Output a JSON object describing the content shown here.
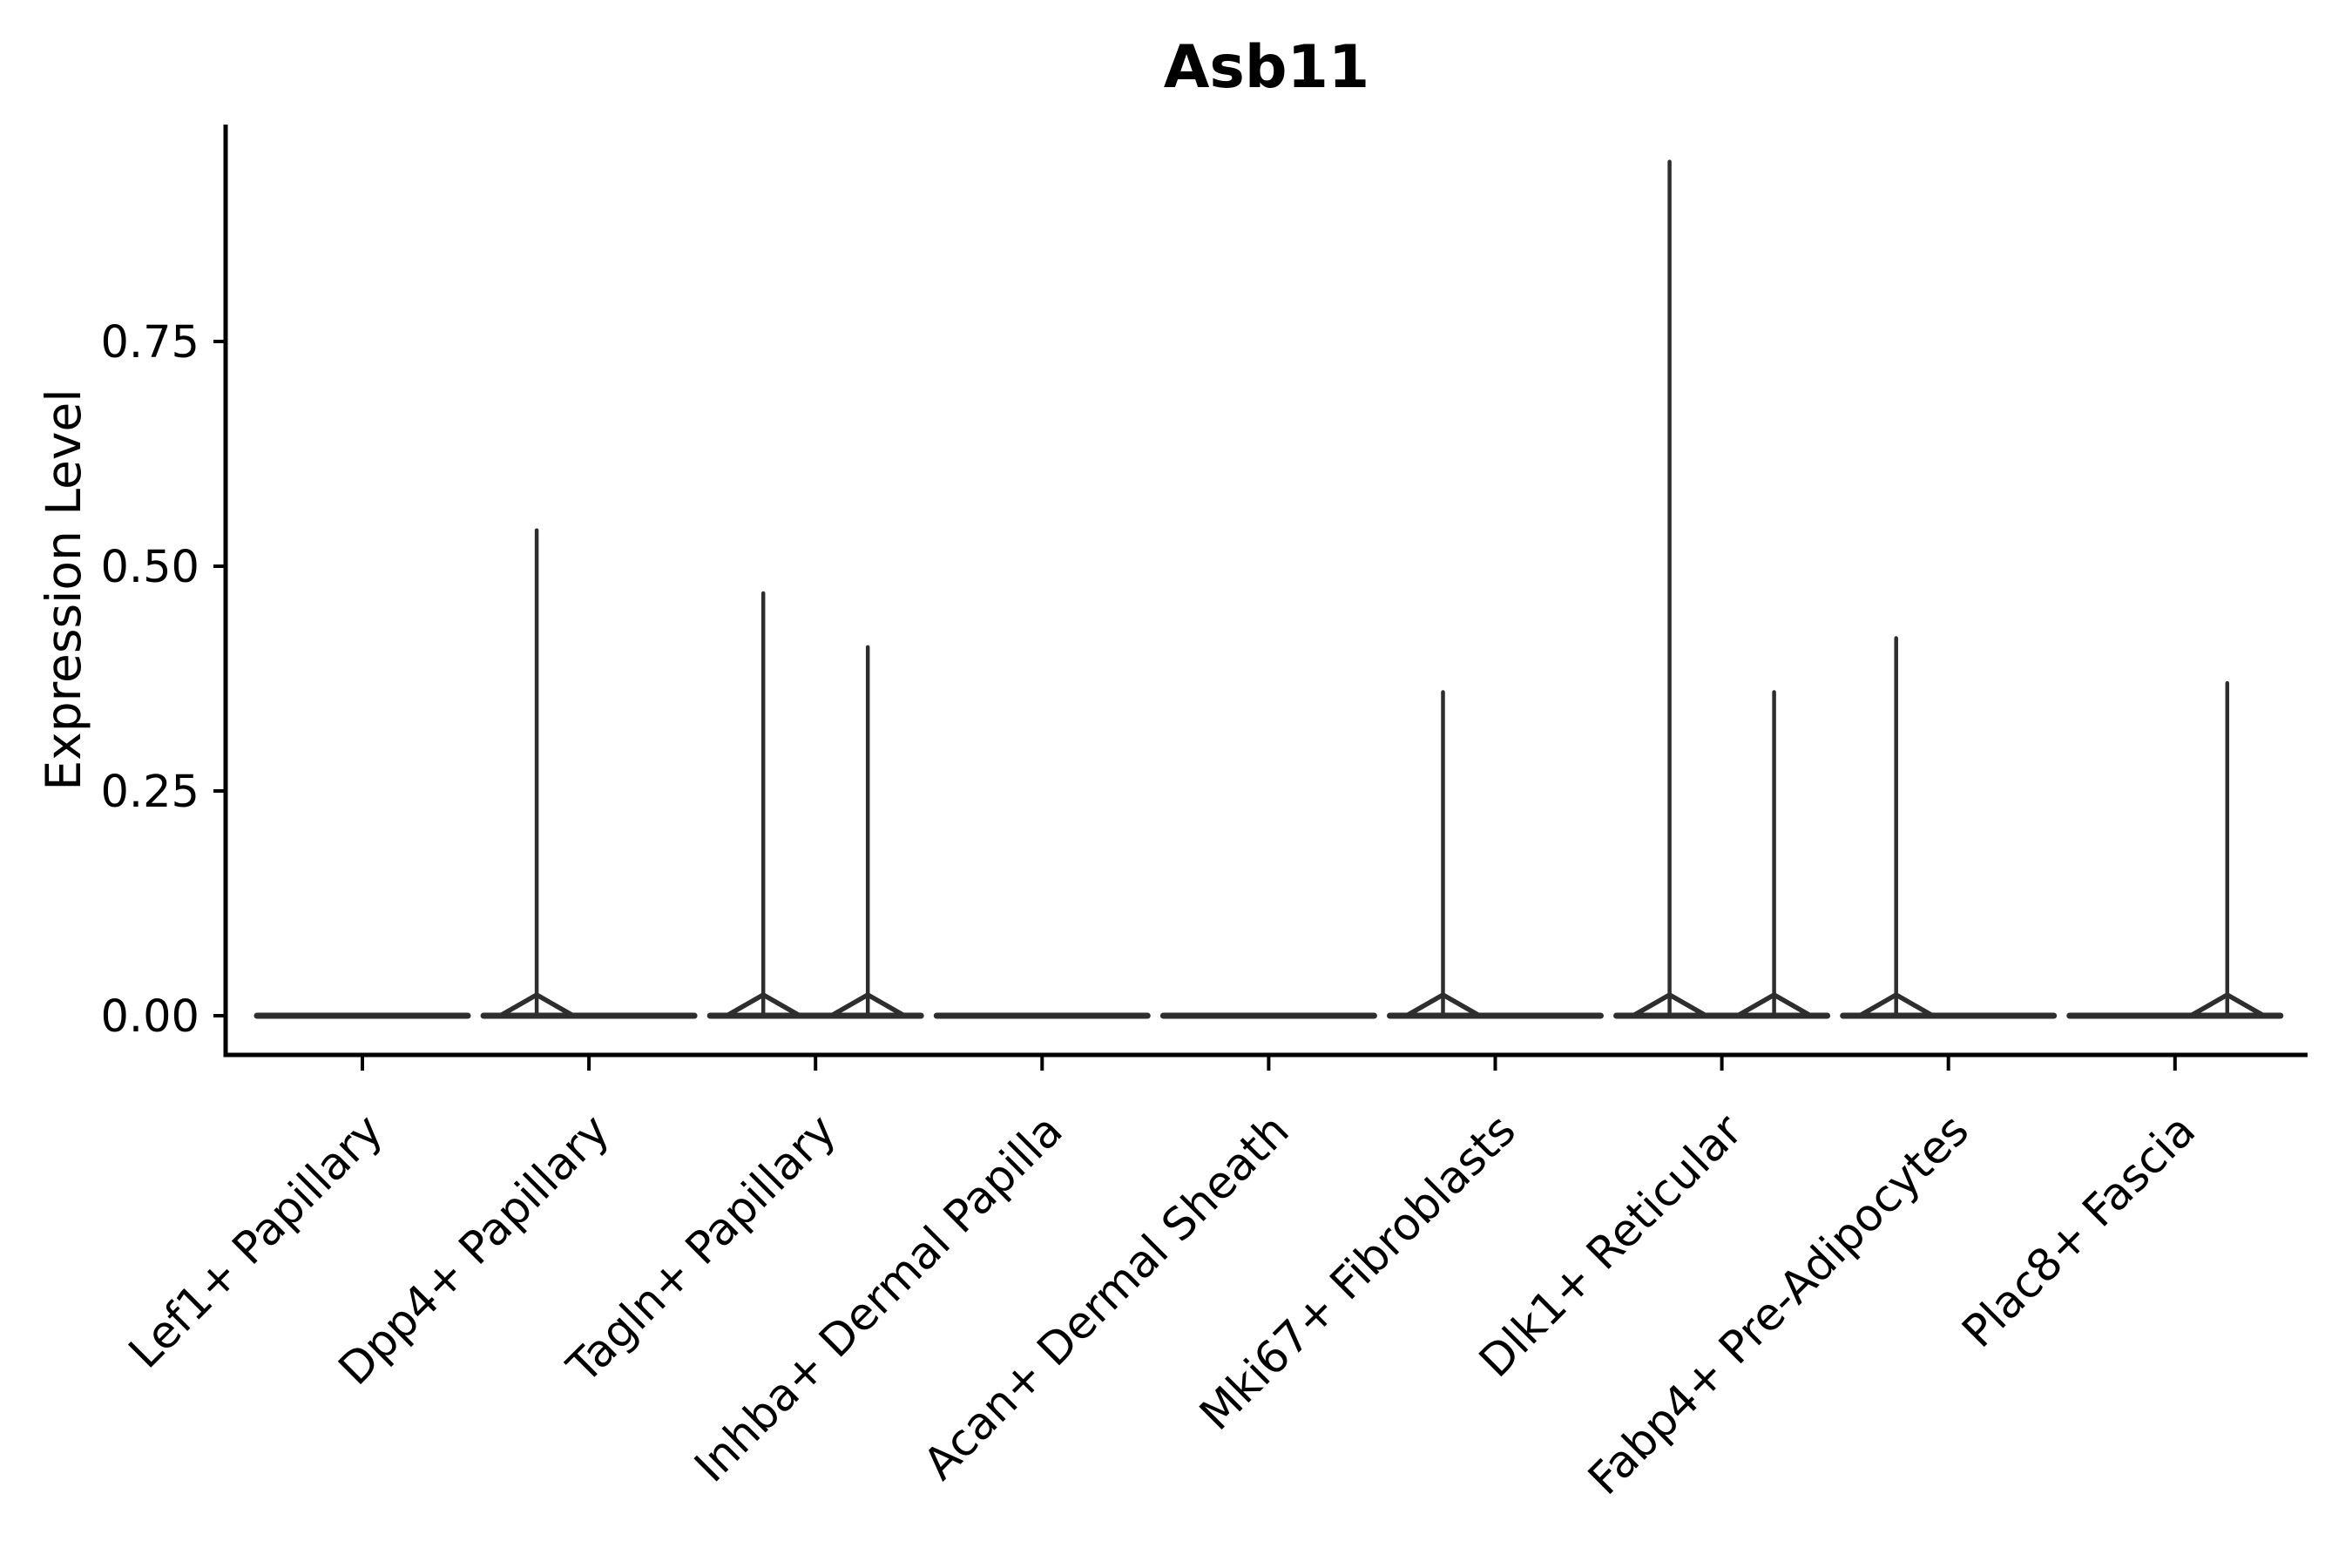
{
  "chart_data": {
    "type": "violin",
    "title": "Asb11",
    "ylabel": "Expression Level",
    "xlabel": "",
    "legend": null,
    "grid": false,
    "ylim": [
      -0.044,
      0.991
    ],
    "yticks": [
      {
        "label": "0.00",
        "value": 0.0
      },
      {
        "label": "0.25",
        "value": 0.25
      },
      {
        "label": "0.50",
        "value": 0.5
      },
      {
        "label": "0.75",
        "value": 0.75
      }
    ],
    "categories": [
      "Lef1+ Papillary",
      "Dpp4+ Papillary",
      "Tagln+ Papillary",
      "Inhba+ Dermal Papilla",
      "Acan+ Dermal Sheath",
      "Mki67+ Fibroblasts",
      "Dlk1+ Reticular",
      "Fabp4+ Pre-Adipocytes",
      "Plac8+ Fascia"
    ],
    "violins": [
      {
        "label": "Lef1+ Papillary",
        "baseline_value": 0,
        "spikes": []
      },
      {
        "label": "Dpp4+ Papillary",
        "baseline_value": 0,
        "spikes": [
          {
            "position": "left",
            "max": 0.54
          }
        ]
      },
      {
        "label": "Tagln+ Papillary",
        "baseline_value": 0,
        "spikes": [
          {
            "position": "left",
            "max": 0.47
          },
          {
            "position": "right",
            "max": 0.41
          }
        ]
      },
      {
        "label": "Inhba+ Dermal Papilla",
        "baseline_value": 0,
        "spikes": []
      },
      {
        "label": "Acan+ Dermal Sheath",
        "baseline_value": 0,
        "spikes": []
      },
      {
        "label": "Mki67+ Fibroblasts",
        "baseline_value": 0,
        "spikes": [
          {
            "position": "left",
            "max": 0.36
          }
        ]
      },
      {
        "label": "Dlk1+ Reticular",
        "baseline_value": 0,
        "spikes": [
          {
            "position": "left",
            "max": 0.95
          },
          {
            "position": "right",
            "max": 0.36
          }
        ]
      },
      {
        "label": "Fabp4+ Pre-Adipocytes",
        "baseline_value": 0,
        "spikes": [
          {
            "position": "left",
            "max": 0.42
          }
        ]
      },
      {
        "label": "Plac8+ Fascia",
        "baseline_value": 0,
        "spikes": [
          {
            "position": "right",
            "max": 0.37
          }
        ]
      }
    ],
    "colors": {
      "violin_stroke": "#2e2e2e",
      "axis": "#000000",
      "text": "#000000",
      "background": "#ffffff"
    }
  }
}
